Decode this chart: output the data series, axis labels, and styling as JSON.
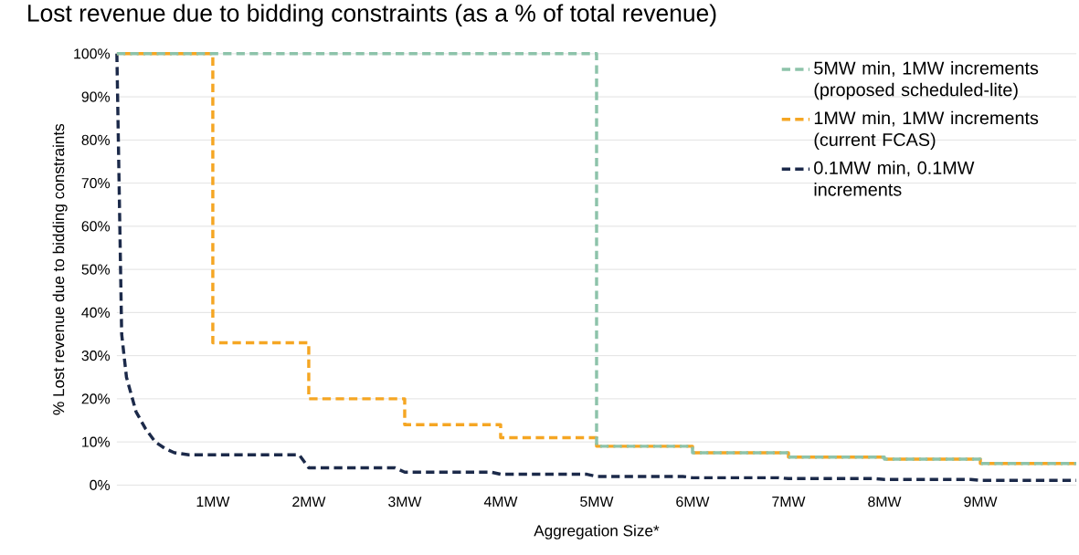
{
  "chart_data": {
    "type": "line",
    "title": "Lost revenue due to bidding constraints (as a % of total revenue)",
    "xlabel": "Aggregation Size*",
    "ylabel": "% Lost revenue due to bidding constraints",
    "xlim": [
      0,
      10
    ],
    "ylim": [
      0,
      100
    ],
    "xticks": [
      {
        "value": 1,
        "label": "1MW"
      },
      {
        "value": 2,
        "label": "2MW"
      },
      {
        "value": 3,
        "label": "3MW"
      },
      {
        "value": 4,
        "label": "4MW"
      },
      {
        "value": 5,
        "label": "5MW"
      },
      {
        "value": 6,
        "label": "6MW"
      },
      {
        "value": 7,
        "label": "7MW"
      },
      {
        "value": 8,
        "label": "8MW"
      },
      {
        "value": 9,
        "label": "9MW"
      }
    ],
    "yticks": [
      {
        "value": 0,
        "label": "0%"
      },
      {
        "value": 10,
        "label": "10%"
      },
      {
        "value": 20,
        "label": "20%"
      },
      {
        "value": 30,
        "label": "30%"
      },
      {
        "value": 40,
        "label": "40%"
      },
      {
        "value": 50,
        "label": "50%"
      },
      {
        "value": 60,
        "label": "60%"
      },
      {
        "value": 70,
        "label": "70%"
      },
      {
        "value": 80,
        "label": "80%"
      },
      {
        "value": 90,
        "label": "90%"
      },
      {
        "value": 100,
        "label": "100%"
      }
    ],
    "grid": "y",
    "legend": "top right",
    "line_style": "dashed",
    "series": [
      {
        "name": "5MW min, 1MW increments (proposed scheduled-lite)",
        "type": "step",
        "color": "#8dc3aa",
        "x": [
          0,
          5,
          6,
          7,
          8,
          9,
          10
        ],
        "values": [
          100,
          9,
          7.5,
          6.5,
          6,
          5,
          5
        ]
      },
      {
        "name": "1MW min, 1MW increments (current FCAS)",
        "type": "step",
        "color": "#f5a623",
        "x": [
          0,
          1,
          2,
          3,
          4,
          5,
          6,
          7,
          8,
          9,
          10
        ],
        "values": [
          100,
          33,
          20,
          14,
          11,
          9,
          7.5,
          6.5,
          6,
          5,
          5
        ]
      },
      {
        "name": "0.1MW min, 0.1MW increments",
        "type": "line",
        "color": "#1c2a4a",
        "x": [
          0,
          0.05,
          0.1,
          0.2,
          0.3,
          0.4,
          0.5,
          0.6,
          0.75,
          1.9,
          2,
          2.9,
          3,
          3.9,
          4,
          4.9,
          5,
          5.9,
          6,
          6.9,
          7,
          7.9,
          8,
          8.9,
          9,
          10
        ],
        "values": [
          100,
          35,
          25,
          17,
          13,
          10,
          8.5,
          7.5,
          7,
          7,
          4,
          4,
          3,
          3,
          2.5,
          2.5,
          2,
          2,
          1.7,
          1.7,
          1.5,
          1.5,
          1.3,
          1.3,
          1.1,
          1.1
        ]
      }
    ]
  }
}
